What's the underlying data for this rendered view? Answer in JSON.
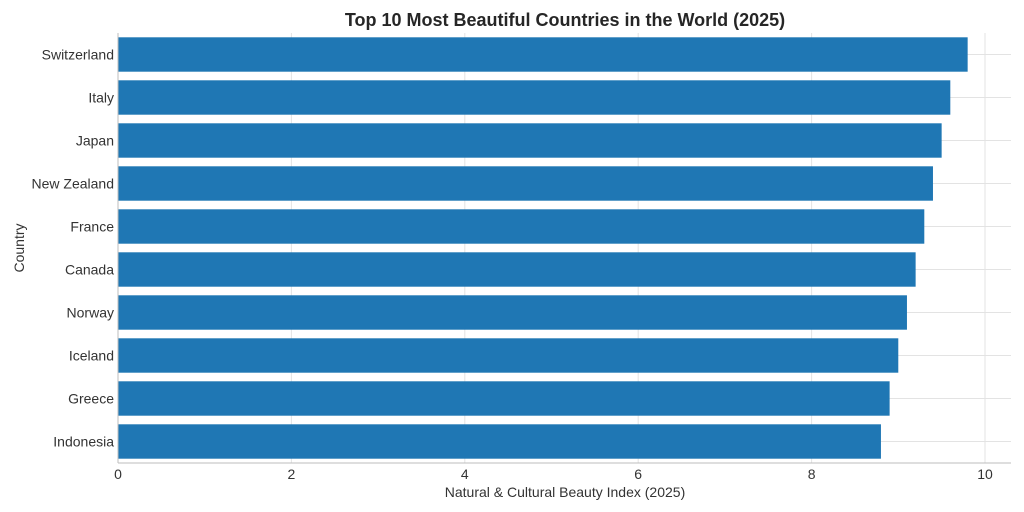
{
  "chart_data": {
    "type": "bar",
    "orientation": "horizontal",
    "title": "Top 10 Most Beautiful Countries in the World (2025)",
    "xlabel": "Natural & Cultural Beauty Index (2025)",
    "ylabel": "Country",
    "categories": [
      "Switzerland",
      "Italy",
      "Japan",
      "New Zealand",
      "France",
      "Canada",
      "Norway",
      "Iceland",
      "Greece",
      "Indonesia"
    ],
    "values": [
      9.8,
      9.6,
      9.5,
      9.4,
      9.3,
      9.2,
      9.1,
      9.0,
      8.9,
      8.8
    ],
    "xlim": [
      0,
      10.3
    ],
    "xticks": [
      0,
      2,
      4,
      6,
      8,
      10
    ],
    "grid": true,
    "bar_color": "#1f77b4"
  }
}
